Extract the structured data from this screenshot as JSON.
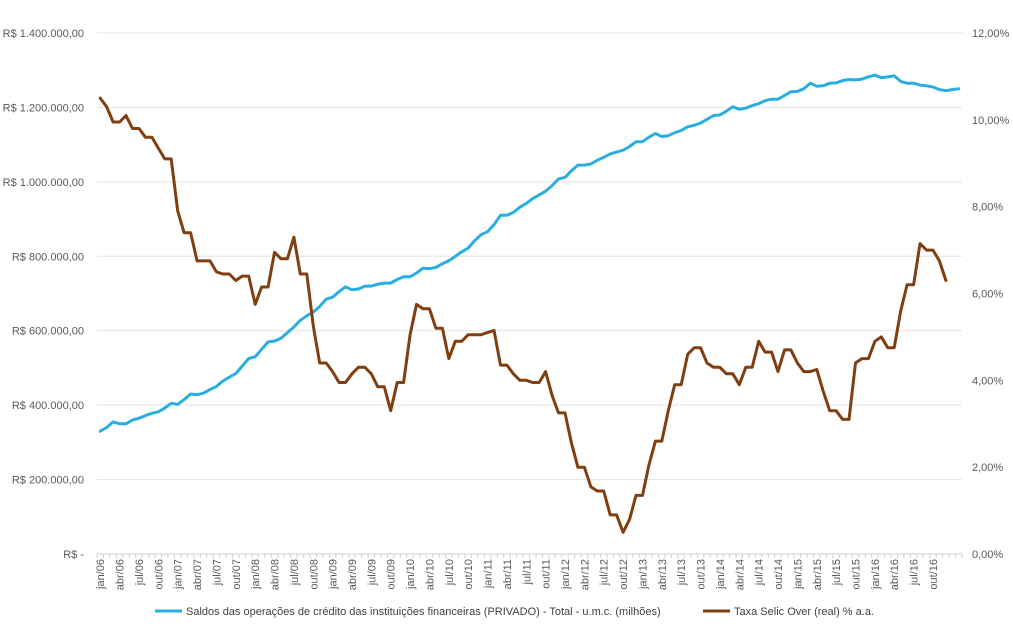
{
  "chart_data": {
    "type": "line",
    "title": "",
    "xlabel": "",
    "grid": true,
    "legend_position": "bottom",
    "x_ticks": [
      "jan/06",
      "abr/06",
      "jul/06",
      "out/06",
      "jan/07",
      "abr/07",
      "jul/07",
      "out/07",
      "jan/08",
      "abr/08",
      "jul/08",
      "out/08",
      "jan/09",
      "abr/09",
      "jul/09",
      "out/09",
      "jan/10",
      "abr/10",
      "jul/10",
      "out/10",
      "jan/11",
      "abr/11",
      "jul/11",
      "out/11",
      "jan/12",
      "abr/12",
      "jul/12",
      "out/12",
      "jan/13",
      "abr/13",
      "jul/13",
      "out/13",
      "jan/14",
      "abr/14",
      "jul/14",
      "out/14",
      "jan/15",
      "abr/15",
      "jul/15",
      "out/15",
      "jan/16",
      "abr/16",
      "jul/16",
      "out/16"
    ],
    "y_left": {
      "ylim": [
        0,
        1400000
      ],
      "ticks": [
        0,
        200000,
        400000,
        600000,
        800000,
        1000000,
        1200000,
        1400000
      ],
      "tick_labels": [
        "R$ -",
        "R$ 200.000,00",
        "R$ 400.000,00",
        "R$ 600.000,00",
        "R$ 800.000,00",
        "R$ 1.000.000,00",
        "R$ 1.200.000,00",
        "R$ 1.400.000,00"
      ]
    },
    "y_right": {
      "ylim": [
        0,
        12
      ],
      "ticks": [
        0,
        2,
        4,
        6,
        8,
        10,
        12
      ],
      "tick_labels": [
        "0,00%",
        "2,00%",
        "4,00%",
        "6,00%",
        "8,00%",
        "10,00%",
        "12,00%"
      ]
    },
    "series": [
      {
        "name": "Saldos das operações de crédito das instituições financeiras (PRIVADO) - Total - u.m.c. (milhões)",
        "axis": "left",
        "color": "#2aaee0",
        "values": [
          330000,
          340000,
          355000,
          350000,
          350000,
          360000,
          365000,
          372000,
          378000,
          382000,
          392000,
          405000,
          402000,
          415000,
          430000,
          428000,
          432000,
          442000,
          450000,
          465000,
          475000,
          485000,
          505000,
          525000,
          530000,
          550000,
          570000,
          572000,
          580000,
          595000,
          610000,
          628000,
          640000,
          650000,
          665000,
          685000,
          690000,
          705000,
          718000,
          710000,
          712000,
          720000,
          720000,
          725000,
          728000,
          728000,
          738000,
          745000,
          745000,
          755000,
          768000,
          767000,
          770000,
          780000,
          788000,
          800000,
          812000,
          822000,
          842000,
          858000,
          866000,
          885000,
          910000,
          910000,
          918000,
          932000,
          942000,
          955000,
          965000,
          975000,
          990000,
          1008000,
          1012000,
          1030000,
          1045000,
          1045000,
          1048000,
          1058000,
          1066000,
          1075000,
          1080000,
          1085000,
          1095000,
          1108000,
          1108000,
          1120000,
          1130000,
          1122000,
          1124000,
          1132000,
          1138000,
          1148000,
          1152000,
          1158000,
          1168000,
          1178000,
          1180000,
          1190000,
          1202000,
          1195000,
          1198000,
          1205000,
          1210000,
          1218000,
          1222000,
          1222000,
          1232000,
          1242000,
          1243000,
          1250000,
          1265000,
          1257000,
          1258000,
          1265000,
          1266000,
          1272000,
          1275000,
          1274000,
          1276000,
          1282000,
          1287000,
          1280000,
          1282000,
          1285000,
          1270000,
          1265000,
          1265000,
          1260000,
          1258000,
          1255000,
          1248000,
          1245000,
          1248000,
          1250000
        ]
      },
      {
        "name": "Taxa Selic Over (real) % a.a.",
        "axis": "right",
        "color": "#7f3f10",
        "values": [
          10.5,
          10.3,
          9.95,
          9.95,
          10.1,
          9.8,
          9.8,
          9.6,
          9.6,
          9.35,
          9.1,
          9.1,
          7.9,
          7.4,
          7.4,
          6.75,
          6.75,
          6.75,
          6.5,
          6.45,
          6.45,
          6.3,
          6.4,
          6.4,
          5.75,
          6.15,
          6.15,
          6.95,
          6.8,
          6.8,
          7.3,
          6.45,
          6.45,
          5.25,
          4.4,
          4.4,
          4.2,
          3.95,
          3.95,
          4.15,
          4.3,
          4.3,
          4.15,
          3.85,
          3.85,
          3.3,
          3.95,
          3.95,
          5.05,
          5.75,
          5.65,
          5.65,
          5.2,
          5.2,
          4.5,
          4.9,
          4.9,
          5.05,
          5.05,
          5.05,
          5.1,
          5.15,
          4.35,
          4.35,
          4.15,
          4.0,
          4.0,
          3.95,
          3.95,
          4.2,
          3.65,
          3.25,
          3.25,
          2.55,
          2.0,
          2.0,
          1.55,
          1.45,
          1.45,
          0.9,
          0.9,
          0.5,
          0.8,
          1.35,
          1.35,
          2.05,
          2.6,
          2.6,
          3.3,
          3.9,
          3.9,
          4.6,
          4.75,
          4.75,
          4.4,
          4.3,
          4.3,
          4.15,
          4.15,
          3.9,
          4.3,
          4.3,
          4.9,
          4.65,
          4.65,
          4.2,
          4.7,
          4.7,
          4.4,
          4.2,
          4.2,
          4.25,
          3.75,
          3.3,
          3.3,
          3.1,
          3.1,
          4.4,
          4.5,
          4.5,
          4.9,
          5.0,
          4.75,
          4.75,
          5.6,
          6.2,
          6.2,
          7.15,
          7.0,
          7.0,
          6.75,
          6.3
        ]
      }
    ]
  }
}
